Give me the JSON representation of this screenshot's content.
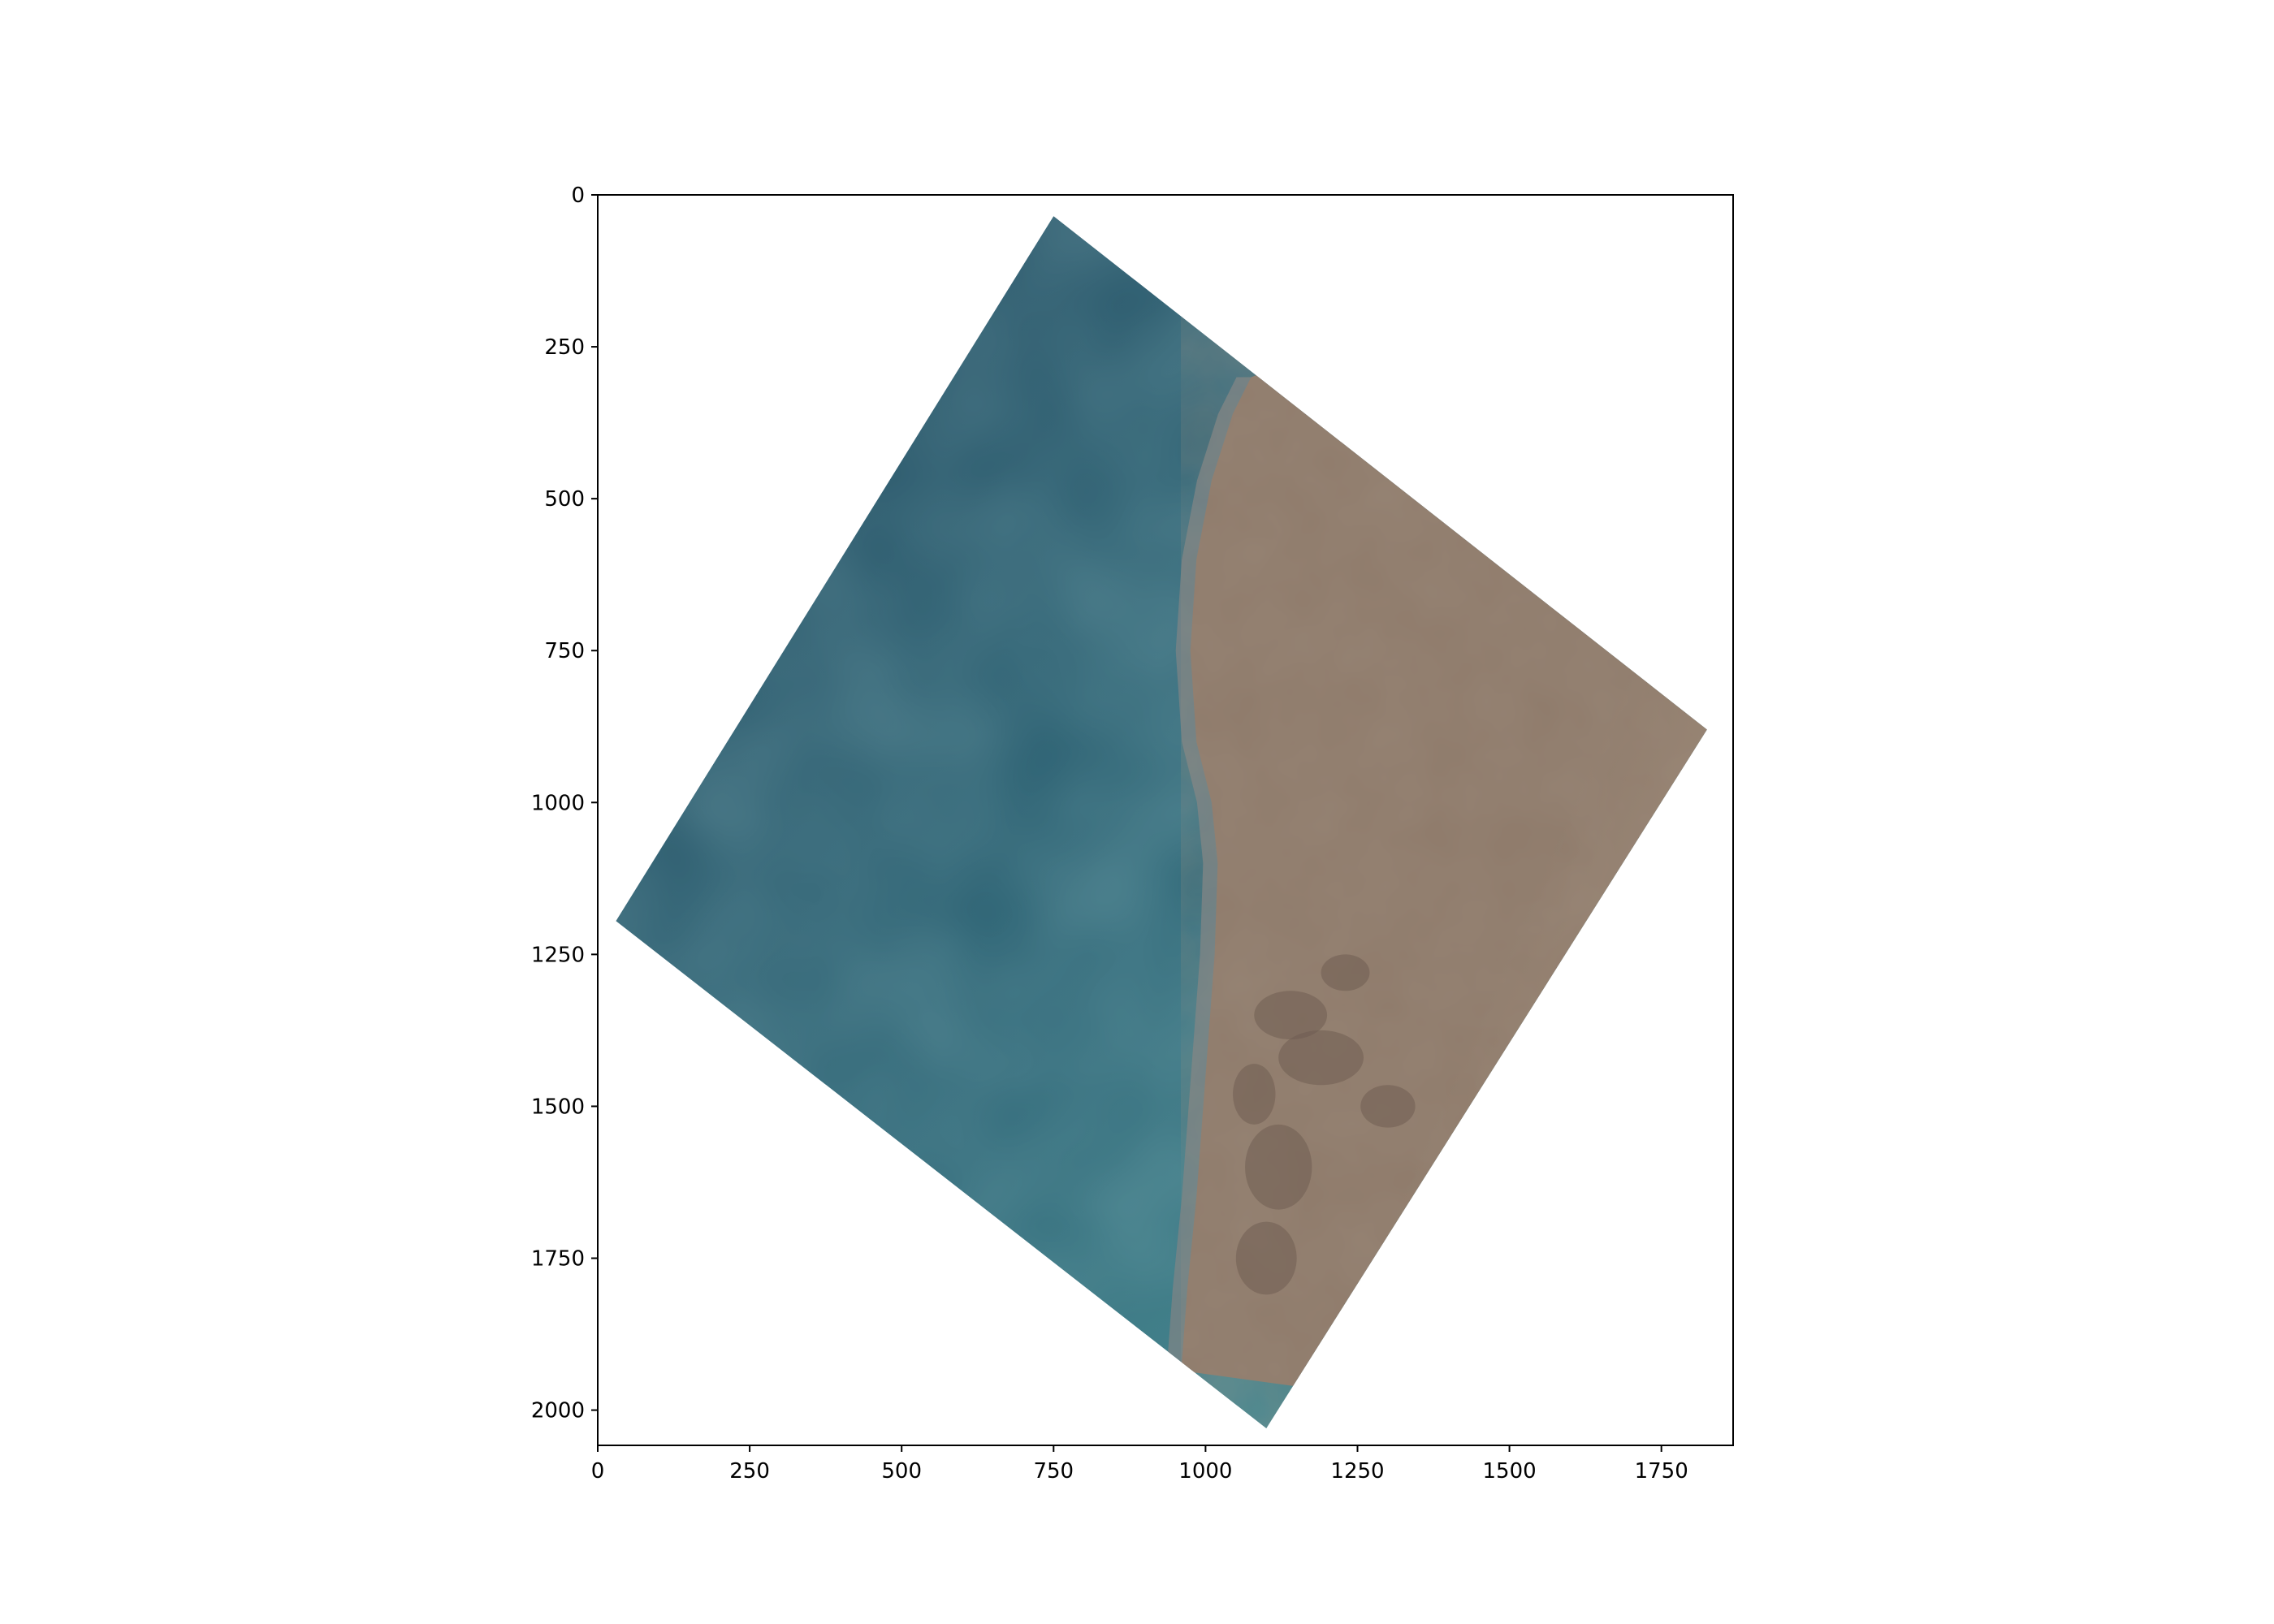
{
  "chart_data": {
    "type": "image",
    "title": "",
    "xlabel": "",
    "ylabel": "",
    "xlim": [
      0,
      1868
    ],
    "ylim": [
      2058,
      0
    ],
    "xticks": [
      0,
      250,
      500,
      750,
      1000,
      1250,
      1500,
      1750
    ],
    "yticks": [
      0,
      250,
      500,
      750,
      1000,
      1250,
      1500,
      1750,
      2000
    ],
    "grid": false,
    "scene": {
      "description": "satellite image of coastline: sea (left) meeting desert land (right)",
      "footprint": [
        [
          750,
          35
        ],
        [
          1825,
          880
        ],
        [
          1100,
          2030
        ],
        [
          30,
          1195
        ]
      ],
      "coastline": [
        [
          1075,
          300
        ],
        [
          1045,
          360
        ],
        [
          1010,
          470
        ],
        [
          985,
          600
        ],
        [
          975,
          750
        ],
        [
          985,
          900
        ],
        [
          1010,
          1000
        ],
        [
          1020,
          1100
        ],
        [
          1015,
          1250
        ],
        [
          1000,
          1450
        ],
        [
          985,
          1650
        ],
        [
          970,
          1800
        ],
        [
          960,
          1935
        ]
      ],
      "colors": {
        "sea_dark": "#244a60",
        "sea_mid": "#2f6878",
        "sea_light": "#3f8a8e",
        "shore": "#7d8485",
        "land": "#8f7b6b",
        "land_dark": "#6f5d52",
        "land_light": "#a6927f"
      }
    }
  }
}
